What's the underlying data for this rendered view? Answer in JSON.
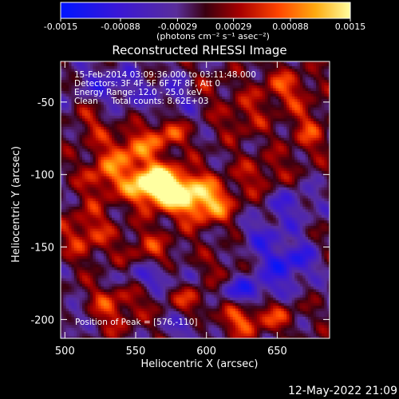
{
  "chart_data": {
    "type": "heatmap",
    "title": "Reconstructed RHESSI Image",
    "xlabel": "Heliocentric X (arcsec)",
    "ylabel": "Heliocentric Y (arcsec)",
    "xlim": [
      497,
      687
    ],
    "ylim": [
      -213,
      -22
    ],
    "x_ticks": [
      500,
      550,
      600,
      650
    ],
    "y_ticks": [
      -50,
      -100,
      -150,
      -200
    ],
    "colorbar": {
      "ticks": [
        "-0.0015",
        "-0.00088",
        "-0.00029",
        "0.00029",
        "0.00088",
        "0.0015"
      ],
      "unit_label": "(photons cm⁻² s⁻¹ asec⁻²)",
      "range": [
        -0.0015,
        0.0015
      ]
    },
    "annotations": [
      "15-Feb-2014 03:09:36.000 to 03:11:48.000",
      "Detectors: 3F 4F 5F 6F 7F 8F, Att 0",
      "Energy Range: 12.0 - 25.0 keV",
      "Clean     Total counts: 8.62E+03"
    ],
    "peak_label": "Position of Peak = [576,-110]",
    "peak": [
      576,
      -110
    ],
    "footer_date": "12-May-2022 21:09"
  }
}
